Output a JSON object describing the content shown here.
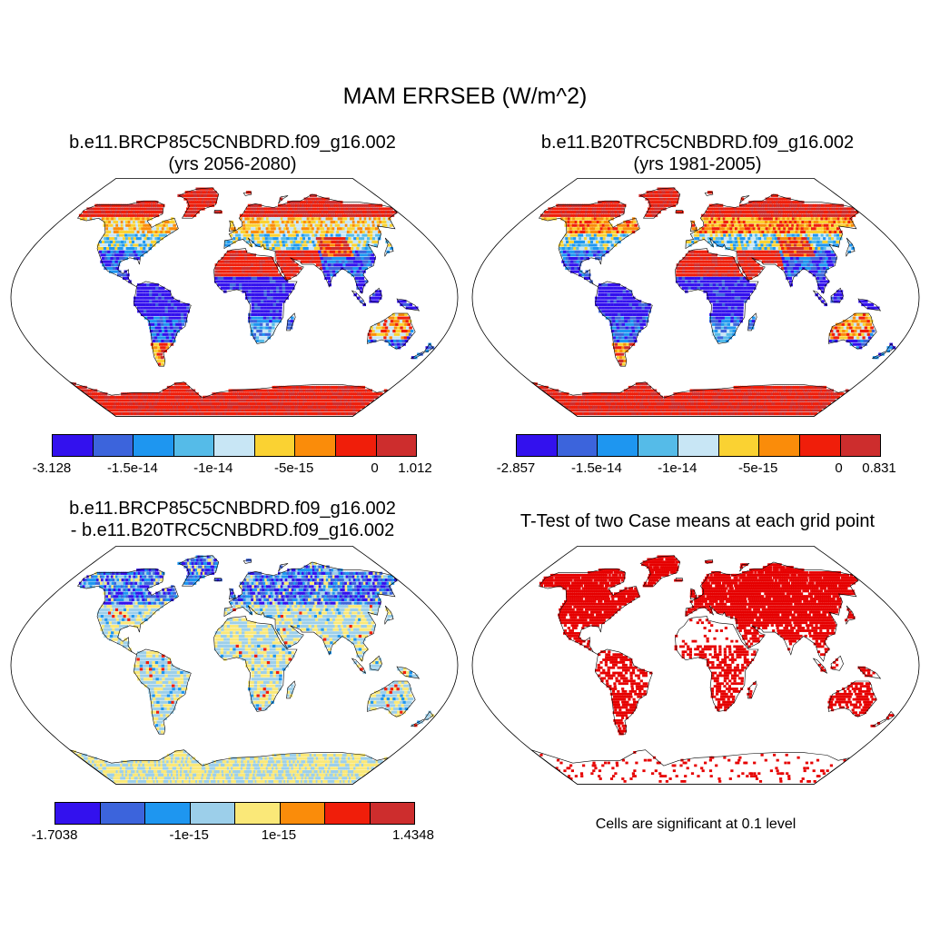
{
  "title": "MAM ERRSEB (W/m^2)",
  "colors": {
    "blue_dark": "#3311ee",
    "blue": "#3c64dc",
    "blue_mid": "#1e96f0",
    "blue_light": "#55bbe8",
    "blue_pale": "#c8e6f5",
    "sky_pale": "#9ccfea",
    "yellow": "#fad232",
    "yellow_pale": "#fae878",
    "orange": "#fa8c0a",
    "red": "#f01e0a",
    "red_dark": "#cd2d2d",
    "sig_red": "#e60000",
    "coast": "#000000"
  },
  "panels": [
    {
      "id": "case",
      "title_line1": "b.e11.BRCP85C5CNBDRD.f09_g16.002",
      "title_line2": "(yrs 2056-2080)",
      "colorbar": {
        "colors": [
          "#3311ee",
          "#3c64dc",
          "#1e96f0",
          "#55bbe8",
          "#c8e6f5",
          "#fad232",
          "#fa8c0a",
          "#f01e0a",
          "#cd2d2d"
        ],
        "labels": [
          "-3.128",
          "-1.5e-14",
          "-1e-14",
          "-5e-15",
          "0",
          "1.012"
        ],
        "label_slots": [
          0,
          2,
          4,
          6,
          8,
          9
        ]
      }
    },
    {
      "id": "control",
      "title_line1": "b.e11.B20TRC5CNBDRD.f09_g16.002",
      "title_line2": "(yrs 1981-2005)",
      "colorbar": {
        "colors": [
          "#3311ee",
          "#3c64dc",
          "#1e96f0",
          "#55bbe8",
          "#c8e6f5",
          "#fad232",
          "#fa8c0a",
          "#f01e0a",
          "#cd2d2d"
        ],
        "labels": [
          "-2.857",
          "-1.5e-14",
          "-1e-14",
          "-5e-15",
          "0",
          "0.831"
        ],
        "label_slots": [
          0,
          2,
          4,
          6,
          8,
          9
        ]
      }
    },
    {
      "id": "difference",
      "title_line1": "b.e11.BRCP85C5CNBDRD.f09_g16.002",
      "title_line2": "- b.e11.B20TRC5CNBDRD.f09_g16.002",
      "colorbar": {
        "colors": [
          "#3311ee",
          "#3c64dc",
          "#1e96f0",
          "#9ccfea",
          "#fae878",
          "#fa8c0a",
          "#f01e0a",
          "#cd2d2d"
        ],
        "labels": [
          "-1.7038",
          "-1e-15",
          "1e-15",
          "1.4348"
        ],
        "label_slots": [
          0,
          3,
          5,
          8
        ]
      }
    },
    {
      "id": "ttest",
      "title_line1": "T-Test of two Case means at each grid point",
      "title_line2": "",
      "note": "Cells are significant at 0.1 level"
    }
  ]
}
